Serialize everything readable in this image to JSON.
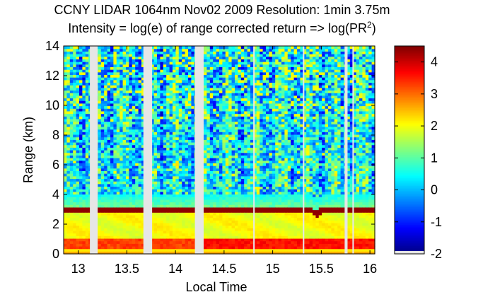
{
  "chart_data": {
    "type": "heatmap",
    "title": "CCNY LIDAR 1064nm Nov02 2009 Resolution: 1min 3.75m",
    "subtitle_main": "Intensity = log(e) of range corrected return => log(PR",
    "subtitle_sup": "2",
    "subtitle_end": ")",
    "xlabel": "Local Time",
    "ylabel": "Range (km)",
    "xlim": [
      12.85,
      16.05
    ],
    "ylim": [
      0,
      14
    ],
    "xticks": [
      13,
      13.5,
      14,
      14.5,
      15,
      15.5,
      16
    ],
    "xtick_labels": [
      "13",
      "13.5",
      "14",
      "14.5",
      "15",
      "15.5",
      "16"
    ],
    "yticks": [
      0,
      2,
      4,
      6,
      8,
      10,
      12,
      14
    ],
    "ytick_labels": [
      "0",
      "2",
      "4",
      "6",
      "8",
      "10",
      "12",
      "14"
    ],
    "colorbar": {
      "clim": [
        -2,
        4.5
      ],
      "ticks": [
        -2,
        -1,
        0,
        1,
        2,
        3,
        4
      ],
      "tick_labels": [
        "-2",
        "-1",
        "0",
        "1",
        "2",
        "3",
        "4"
      ],
      "missing_color": "#e6e6e6"
    },
    "data_gaps": [
      [
        13.12,
        13.2
      ],
      [
        13.67,
        13.76
      ],
      [
        14.2,
        14.29
      ],
      [
        14.8,
        14.815
      ],
      [
        15.31,
        15.325
      ],
      [
        15.74,
        15.77
      ],
      [
        15.82,
        15.835
      ]
    ],
    "layers": {
      "boundary_layer_top_km": 3.0,
      "boundary_layer_intensity": 4.4,
      "cloud_dip_time": 15.45,
      "cloud_dip_depth_km": 0.5,
      "near_surface_band_km": [
        0.3,
        1.1
      ],
      "near_surface_intensity": 3.3,
      "mixed_layer_intensity": 2.0,
      "free_troposphere_mean": 0.5
    }
  }
}
